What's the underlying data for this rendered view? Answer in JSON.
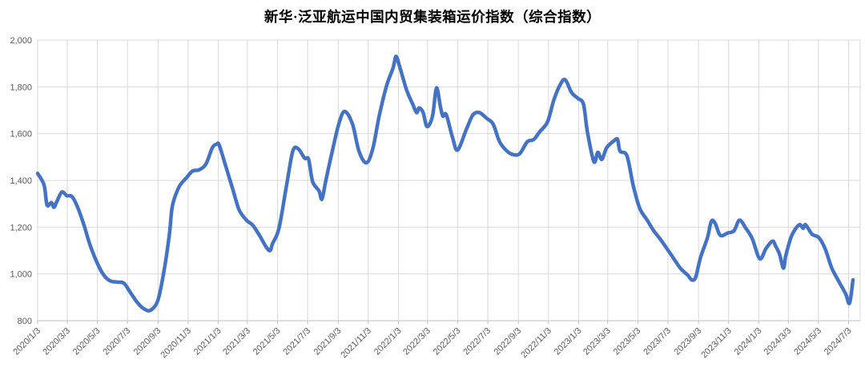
{
  "chart_data": {
    "type": "line",
    "title": "新华·泛亚航运中国内贸集装箱运价指数（综合指数）",
    "legend": "none",
    "grid": true,
    "line_color": "#4472C4",
    "gridline_color": "#D9D9D9",
    "axis_line_color": "#BFBFBF",
    "tick_label_color": "#595959",
    "ylabel": "",
    "xlabel": "",
    "ylim": [
      800,
      2000
    ],
    "y_tick_step": 200,
    "y_ticks": [
      800,
      1000,
      1200,
      1400,
      1600,
      1800,
      2000
    ],
    "y_tick_labels": [
      "800",
      "1,000",
      "1,200",
      "1,400",
      "1,600",
      "1,800",
      "2,000"
    ],
    "x_tick_labels": [
      "2020/1/3",
      "2020/3/3",
      "2020/5/3",
      "2020/7/3",
      "2020/9/3",
      "2020/11/3",
      "2021/1/3",
      "2021/3/3",
      "2021/5/3",
      "2021/7/3",
      "2021/9/3",
      "2021/11/3",
      "2022/1/3",
      "2022/3/3",
      "2022/5/3",
      "2022/7/3",
      "2022/9/3",
      "2022/11/3",
      "2023/1/3",
      "2023/3/3",
      "2023/5/3",
      "2023/7/3",
      "2023/9/3",
      "2023/11/3",
      "2024/1/3",
      "2024/3/3",
      "2024/5/3",
      "2024/7/3"
    ],
    "points": [
      [
        "2020/1/3",
        1430
      ],
      [
        "2020/1/16",
        1380
      ],
      [
        "2020/1/22",
        1295
      ],
      [
        "2020/1/31",
        1305
      ],
      [
        "2020/2/5",
        1285
      ],
      [
        "2020/2/11",
        1310
      ],
      [
        "2020/2/21",
        1350
      ],
      [
        "2020/3/2",
        1335
      ],
      [
        "2020/3/13",
        1330
      ],
      [
        "2020/3/24",
        1285
      ],
      [
        "2020/4/5",
        1215
      ],
      [
        "2020/4/18",
        1125
      ],
      [
        "2020/5/3",
        1045
      ],
      [
        "2020/5/16",
        995
      ],
      [
        "2020/5/29",
        970
      ],
      [
        "2020/6/13",
        965
      ],
      [
        "2020/6/26",
        960
      ],
      [
        "2020/7/9",
        920
      ],
      [
        "2020/7/24",
        875
      ],
      [
        "2020/8/6",
        850
      ],
      [
        "2020/8/19",
        845
      ],
      [
        "2020/9/3",
        890
      ],
      [
        "2020/9/16",
        1025
      ],
      [
        "2020/9/26",
        1170
      ],
      [
        "2020/10/2",
        1290
      ],
      [
        "2020/10/15",
        1370
      ],
      [
        "2020/10/30",
        1410
      ],
      [
        "2020/11/12",
        1440
      ],
      [
        "2020/11/25",
        1445
      ],
      [
        "2020/12/9",
        1470
      ],
      [
        "2020/12/22",
        1540
      ],
      [
        "2020/12/31",
        1555
      ],
      [
        "2021/1/5",
        1550
      ],
      [
        "2021/1/19",
        1455
      ],
      [
        "2021/2/1",
        1365
      ],
      [
        "2021/2/14",
        1275
      ],
      [
        "2021/3/1",
        1230
      ],
      [
        "2021/3/13",
        1210
      ],
      [
        "2021/3/26",
        1170
      ],
      [
        "2021/4/10",
        1115
      ],
      [
        "2021/4/18",
        1100
      ],
      [
        "2021/4/23",
        1130
      ],
      [
        "2021/5/6",
        1195
      ],
      [
        "2021/5/21",
        1375
      ],
      [
        "2021/6/3",
        1525
      ],
      [
        "2021/6/14",
        1535
      ],
      [
        "2021/6/27",
        1495
      ],
      [
        "2021/7/5",
        1490
      ],
      [
        "2021/7/13",
        1395
      ],
      [
        "2021/7/26",
        1355
      ],
      [
        "2021/8/1",
        1320
      ],
      [
        "2021/8/9",
        1400
      ],
      [
        "2021/8/22",
        1525
      ],
      [
        "2021/9/4",
        1640
      ],
      [
        "2021/9/16",
        1695
      ],
      [
        "2021/10/2",
        1640
      ],
      [
        "2021/10/15",
        1525
      ],
      [
        "2021/10/30",
        1475
      ],
      [
        "2021/11/12",
        1535
      ],
      [
        "2021/11/25",
        1675
      ],
      [
        "2021/12/10",
        1805
      ],
      [
        "2021/12/23",
        1880
      ],
      [
        "2021/12/29",
        1930
      ],
      [
        "2022/1/5",
        1890
      ],
      [
        "2022/1/19",
        1790
      ],
      [
        "2022/2/1",
        1725
      ],
      [
        "2022/2/9",
        1690
      ],
      [
        "2022/2/14",
        1710
      ],
      [
        "2022/2/22",
        1690
      ],
      [
        "2022/3/2",
        1630
      ],
      [
        "2022/3/13",
        1675
      ],
      [
        "2022/3/21",
        1795
      ],
      [
        "2022/3/29",
        1715
      ],
      [
        "2022/4/3",
        1675
      ],
      [
        "2022/4/10",
        1680
      ],
      [
        "2022/4/23",
        1580
      ],
      [
        "2022/5/3",
        1530
      ],
      [
        "2022/5/21",
        1620
      ],
      [
        "2022/6/3",
        1680
      ],
      [
        "2022/6/16",
        1690
      ],
      [
        "2022/7/1",
        1665
      ],
      [
        "2022/7/14",
        1640
      ],
      [
        "2022/7/27",
        1565
      ],
      [
        "2022/8/11",
        1525
      ],
      [
        "2022/8/24",
        1510
      ],
      [
        "2022/9/6",
        1515
      ],
      [
        "2022/9/21",
        1565
      ],
      [
        "2022/10/4",
        1575
      ],
      [
        "2022/10/17",
        1610
      ],
      [
        "2022/11/1",
        1650
      ],
      [
        "2022/11/14",
        1745
      ],
      [
        "2022/11/27",
        1810
      ],
      [
        "2022/12/7",
        1830
      ],
      [
        "2022/12/20",
        1775
      ],
      [
        "2023/1/2",
        1750
      ],
      [
        "2023/1/13",
        1725
      ],
      [
        "2023/1/21",
        1605
      ],
      [
        "2023/2/3",
        1480
      ],
      [
        "2023/2/11",
        1520
      ],
      [
        "2023/2/19",
        1490
      ],
      [
        "2023/3/1",
        1540
      ],
      [
        "2023/3/16",
        1570
      ],
      [
        "2023/3/23",
        1575
      ],
      [
        "2023/3/28",
        1525
      ],
      [
        "2023/4/11",
        1505
      ],
      [
        "2023/4/24",
        1375
      ],
      [
        "2023/5/7",
        1280
      ],
      [
        "2023/5/22",
        1230
      ],
      [
        "2023/6/4",
        1185
      ],
      [
        "2023/6/17",
        1150
      ],
      [
        "2023/7/2",
        1105
      ],
      [
        "2023/7/15",
        1065
      ],
      [
        "2023/7/28",
        1025
      ],
      [
        "2023/8/12",
        995
      ],
      [
        "2023/8/20",
        975
      ],
      [
        "2023/8/28",
        985
      ],
      [
        "2023/9/7",
        1070
      ],
      [
        "2023/9/21",
        1155
      ],
      [
        "2023/9/29",
        1225
      ],
      [
        "2023/10/7",
        1215
      ],
      [
        "2023/10/17",
        1165
      ],
      [
        "2023/11/1",
        1175
      ],
      [
        "2023/11/14",
        1185
      ],
      [
        "2023/11/25",
        1230
      ],
      [
        "2023/12/8",
        1195
      ],
      [
        "2023/12/21",
        1150
      ],
      [
        "2024/1/5",
        1065
      ],
      [
        "2024/1/18",
        1110
      ],
      [
        "2024/1/31",
        1140
      ],
      [
        "2024/2/6",
        1120
      ],
      [
        "2024/2/14",
        1085
      ],
      [
        "2024/2/22",
        1025
      ],
      [
        "2024/2/27",
        1080
      ],
      [
        "2024/3/10",
        1165
      ],
      [
        "2024/3/25",
        1210
      ],
      [
        "2024/4/2",
        1195
      ],
      [
        "2024/4/7",
        1210
      ],
      [
        "2024/4/20",
        1170
      ],
      [
        "2024/5/4",
        1155
      ],
      [
        "2024/5/17",
        1105
      ],
      [
        "2024/5/30",
        1025
      ],
      [
        "2024/6/14",
        965
      ],
      [
        "2024/6/27",
        915
      ],
      [
        "2024/7/5",
        875
      ],
      [
        "2024/7/12",
        975
      ]
    ]
  }
}
